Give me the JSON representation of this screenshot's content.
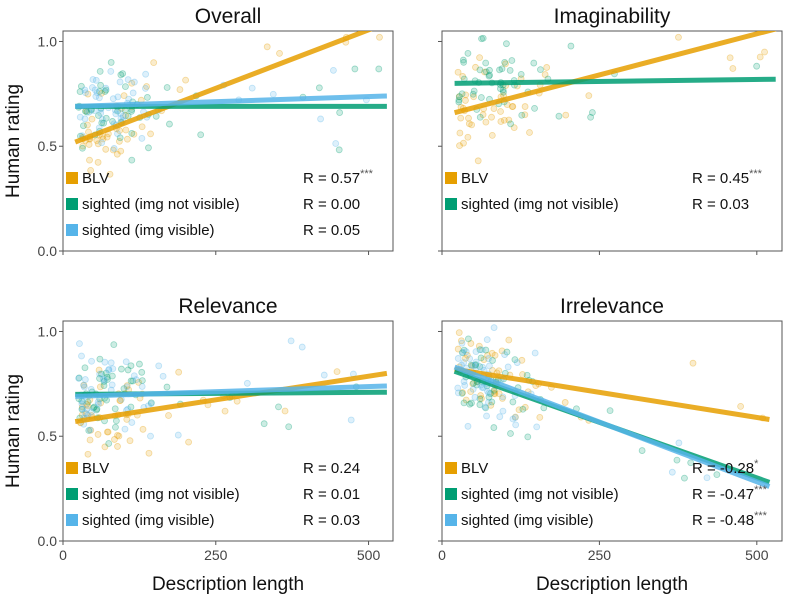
{
  "colors": {
    "blv": "#E69F00",
    "sighted_not_visible": "#009E73",
    "sighted_visible": "#56B4E9"
  },
  "axes": {
    "xlabel": "Description length",
    "ylabel": "Human rating",
    "xlim": [
      0,
      540
    ],
    "ylim": [
      0,
      1.05
    ],
    "xticks": [
      0,
      250,
      500
    ],
    "yticks": [
      0.0,
      0.5,
      1.0
    ],
    "xtick_labels": [
      "0",
      "250",
      "500"
    ],
    "ytick_labels": [
      "0.0",
      "0.5",
      "1.0"
    ]
  },
  "chart_data": [
    {
      "type": "scatter",
      "title": "Overall",
      "xlabel": "",
      "ylabel": "Human rating",
      "series": [
        {
          "name": "BLV",
          "key": "blv",
          "stat": "R = 0.57",
          "sig": "***",
          "fit": {
            "x": [
              20,
              540
            ],
            "y": [
              0.52,
              1.1
            ]
          }
        },
        {
          "name": "sighted (img not visible)",
          "key": "sighted_not_visible",
          "stat": "R = 0.00",
          "sig": "",
          "fit": {
            "x": [
              20,
              530
            ],
            "y": [
              0.69,
              0.69
            ]
          }
        },
        {
          "name": "sighted (img visible)",
          "key": "sighted_visible",
          "stat": "R = 0.05",
          "sig": "",
          "fit": {
            "x": [
              20,
              530
            ],
            "y": [
              0.69,
              0.74
            ]
          }
        }
      ]
    },
    {
      "type": "scatter",
      "title": "Imaginability",
      "xlabel": "",
      "ylabel": "",
      "series": [
        {
          "name": "BLV",
          "key": "blv",
          "stat": "R = 0.45",
          "sig": "***",
          "fit": {
            "x": [
              20,
              530
            ],
            "y": [
              0.66,
              1.06
            ]
          }
        },
        {
          "name": "sighted (img not visible)",
          "key": "sighted_not_visible",
          "stat": "R = 0.03",
          "sig": "",
          "fit": {
            "x": [
              20,
              530
            ],
            "y": [
              0.8,
              0.82
            ]
          }
        }
      ]
    },
    {
      "type": "scatter",
      "title": "Relevance",
      "xlabel": "Description length",
      "ylabel": "Human rating",
      "series": [
        {
          "name": "BLV",
          "key": "blv",
          "stat": "R = 0.24",
          "sig": "",
          "fit": {
            "x": [
              20,
              530
            ],
            "y": [
              0.57,
              0.8
            ]
          }
        },
        {
          "name": "sighted (img not visible)",
          "key": "sighted_not_visible",
          "stat": "R = 0.01",
          "sig": "",
          "fit": {
            "x": [
              20,
              530
            ],
            "y": [
              0.7,
              0.71
            ]
          }
        },
        {
          "name": "sighted (img visible)",
          "key": "sighted_visible",
          "stat": "R = 0.03",
          "sig": "",
          "fit": {
            "x": [
              20,
              530
            ],
            "y": [
              0.69,
              0.74
            ]
          }
        }
      ]
    },
    {
      "type": "scatter",
      "title": "Irrelevance",
      "xlabel": "Description length",
      "ylabel": "",
      "series": [
        {
          "name": "BLV",
          "key": "blv",
          "stat": "R = -0.28",
          "sig": "*",
          "fit": {
            "x": [
              20,
              520
            ],
            "y": [
              0.82,
              0.58
            ]
          }
        },
        {
          "name": "sighted (img not visible)",
          "key": "sighted_not_visible",
          "stat": "R = -0.47",
          "sig": "***",
          "fit": {
            "x": [
              20,
              520
            ],
            "y": [
              0.81,
              0.28
            ]
          }
        },
        {
          "name": "sighted (img visible)",
          "key": "sighted_visible",
          "stat": "R = -0.48",
          "sig": "***",
          "fit": {
            "x": [
              20,
              520
            ],
            "y": [
              0.83,
              0.26
            ]
          }
        }
      ]
    }
  ]
}
